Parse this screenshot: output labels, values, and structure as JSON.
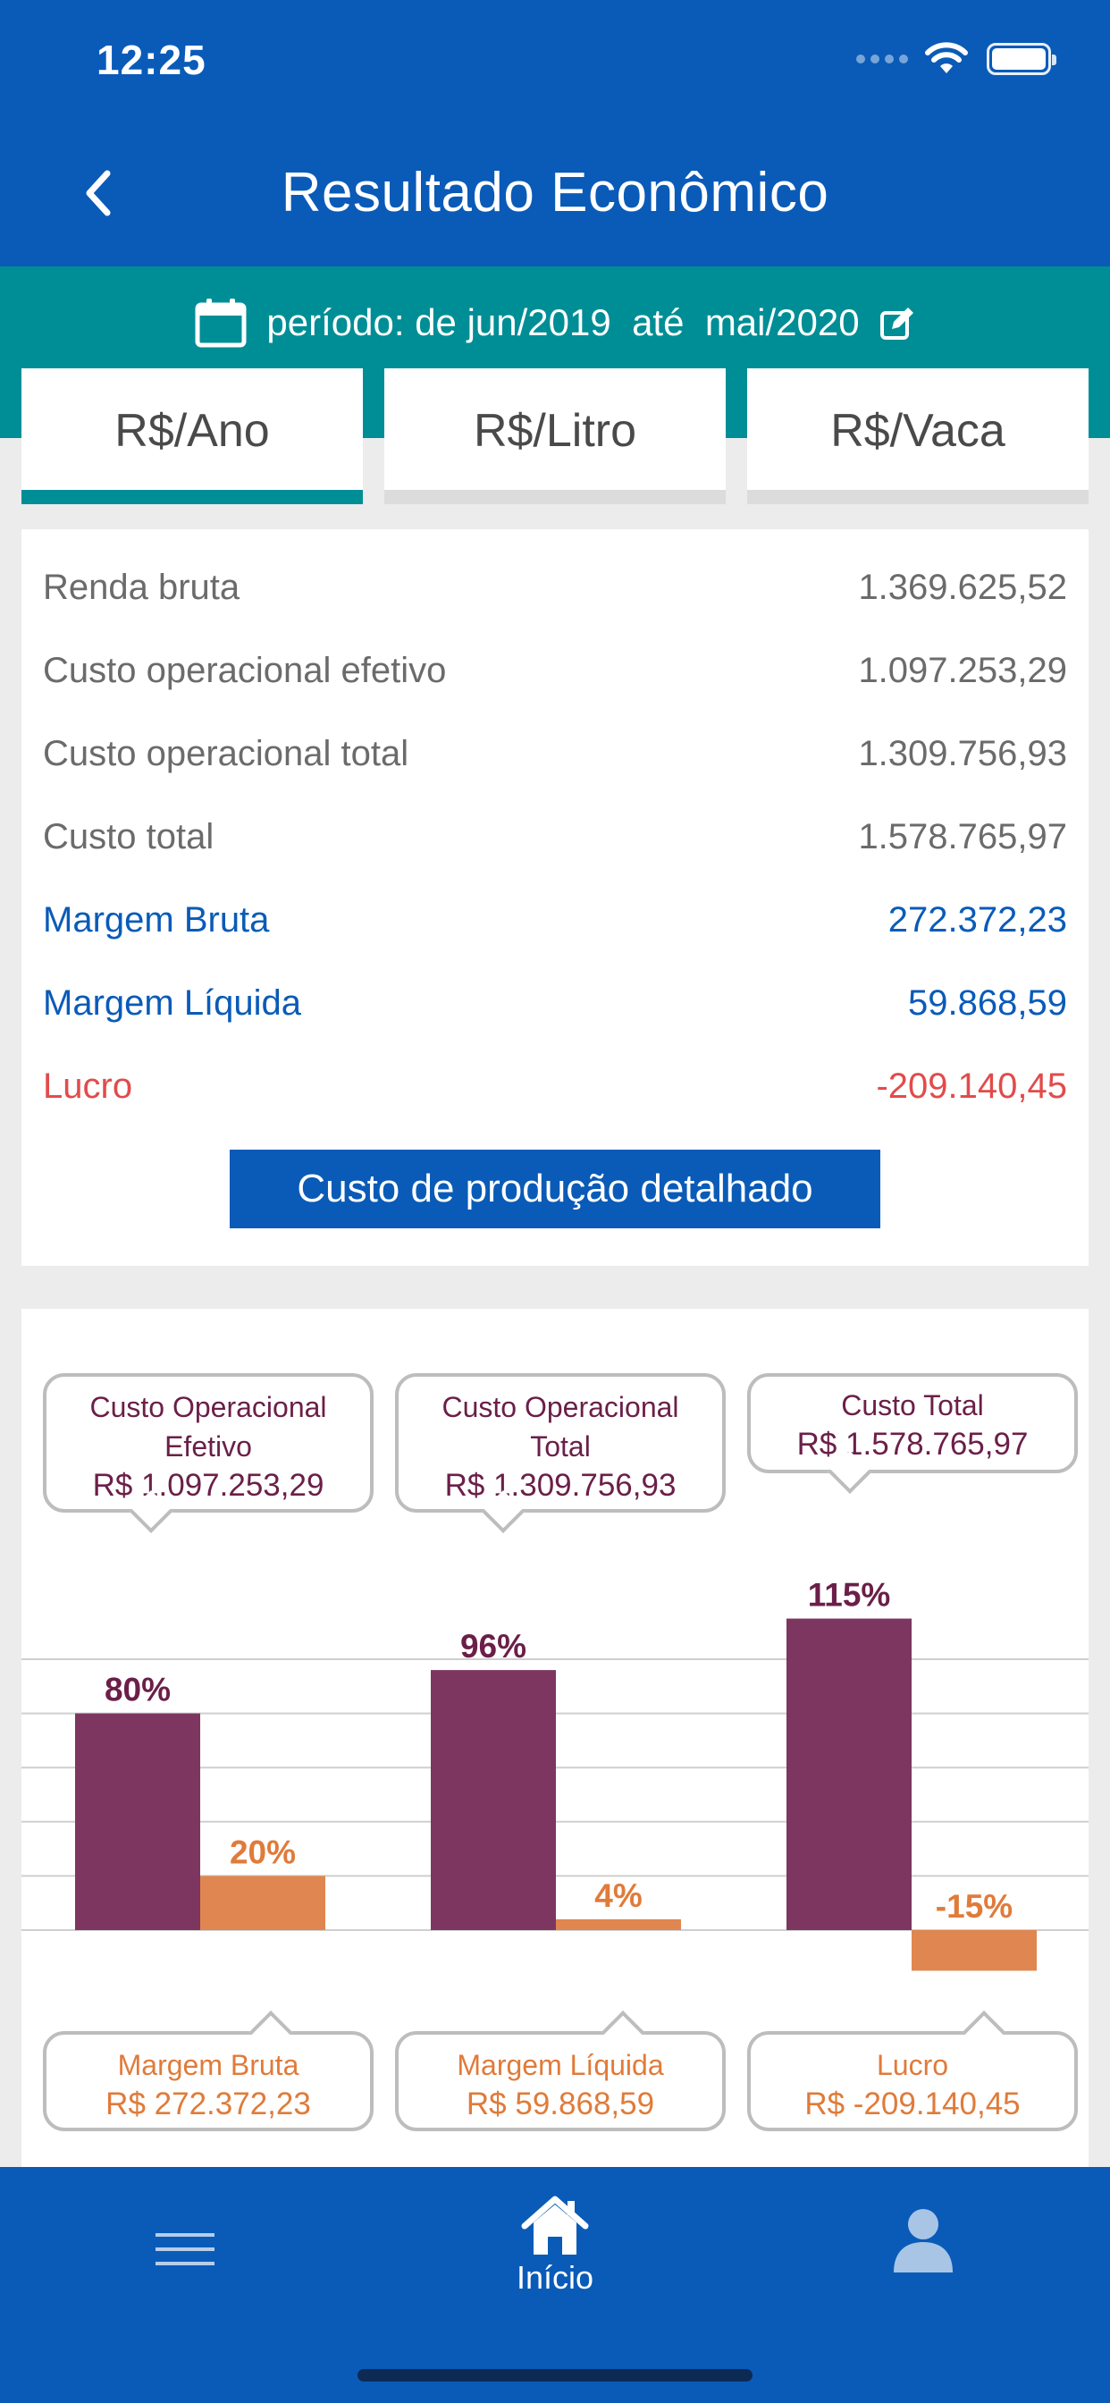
{
  "status_bar": {
    "time": "12:25"
  },
  "nav": {
    "title": "Resultado Econômico"
  },
  "period": {
    "label": "período:",
    "from_prefix": "de",
    "from": "jun/2019",
    "to_prefix": "até",
    "to": "mai/2020"
  },
  "tabs": [
    {
      "label": "R$/Ano",
      "active": true
    },
    {
      "label": "R$/Litro",
      "active": false
    },
    {
      "label": "R$/Vaca",
      "active": false
    }
  ],
  "summary": {
    "rows": [
      {
        "label": "Renda bruta",
        "value": "1.369.625,52",
        "style": "gray"
      },
      {
        "label": "Custo operacional efetivo",
        "value": "1.097.253,29",
        "style": "gray"
      },
      {
        "label": "Custo operacional total",
        "value": "1.309.756,93",
        "style": "gray"
      },
      {
        "label": "Custo total",
        "value": "1.578.765,97",
        "style": "gray"
      },
      {
        "label": "Margem Bruta",
        "value": "272.372,23",
        "style": "blue"
      },
      {
        "label": "Margem Líquida",
        "value": "59.868,59",
        "style": "blue"
      },
      {
        "label": "Lucro",
        "value": "-209.140,45",
        "style": "red"
      }
    ],
    "detail_button": "Custo de produção detalhado"
  },
  "chart_data": {
    "type": "bar",
    "groups": 3,
    "series": [
      {
        "values": [
          80,
          96,
          115
        ],
        "labels": [
          "80%",
          "96%",
          "115%"
        ],
        "color": "#7d3660"
      },
      {
        "values": [
          20,
          4,
          -15
        ],
        "labels": [
          "20%",
          "4%",
          "-15%"
        ],
        "color": "#e08650"
      }
    ],
    "unit": "%",
    "grid": true,
    "top_callouts": [
      {
        "title_line1": "Custo Operacional",
        "title_line2": "Efetivo",
        "amount": "R$ 1.097.253,29"
      },
      {
        "title_line1": "Custo Operacional",
        "title_line2": "Total",
        "amount": "R$ 1.309.756,93"
      },
      {
        "title_line1": "Custo Total",
        "title_line2": "",
        "amount": "R$ 1.578.765,97"
      }
    ],
    "bottom_callouts": [
      {
        "title": "Margem Bruta",
        "amount": "R$ 272.372,23"
      },
      {
        "title": "Margem Líquida",
        "amount": "R$ 59.868,59"
      },
      {
        "title": "Lucro",
        "amount": "R$ -209.140,45"
      }
    ]
  },
  "bottom_nav": {
    "home_label": "Início"
  },
  "colors": {
    "primary": "#0a5bb8",
    "teal": "#008e96",
    "negative": "#e24b4b",
    "cost_bar": "#7d3660",
    "margin_bar": "#e08650"
  }
}
